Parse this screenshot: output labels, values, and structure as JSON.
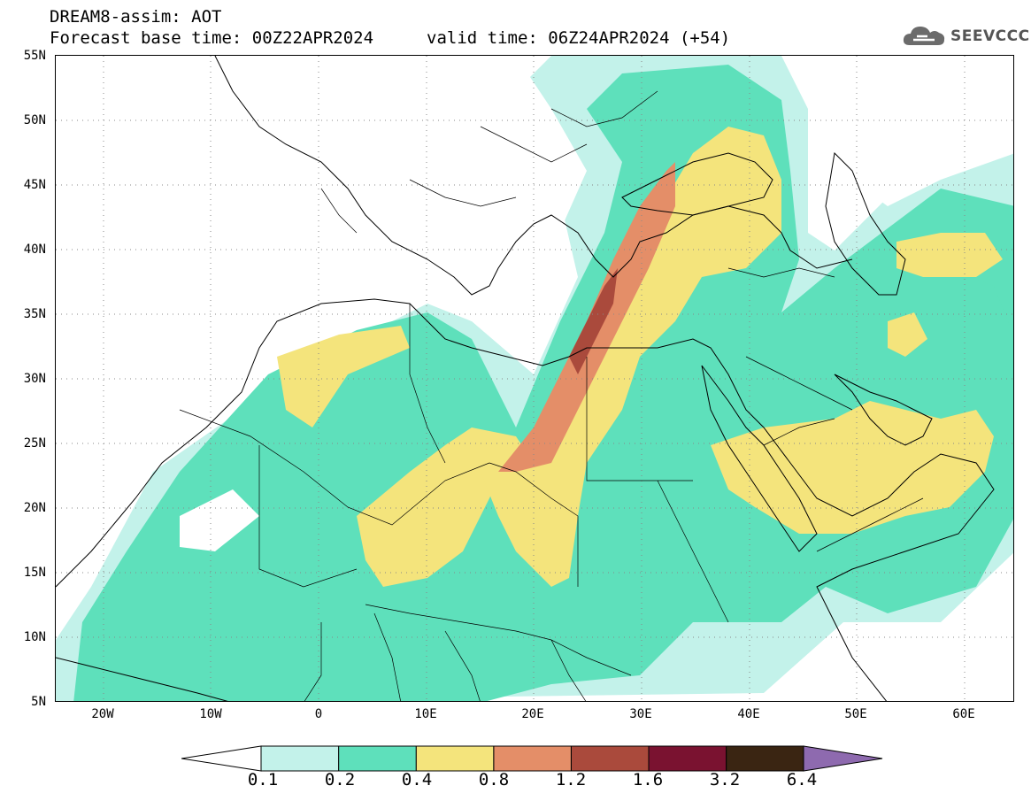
{
  "header": {
    "title": "DREAM8-assim: AOT",
    "base_time": "Forecast base time: 00Z22APR2024",
    "valid_time": "valid time: 06Z24APR2024 (+54)"
  },
  "logo": {
    "text": "SEEVCCC",
    "icon": "cloud-icon"
  },
  "axes": {
    "lat_labels": [
      "55N",
      "50N",
      "45N",
      "40N",
      "35N",
      "30N",
      "25N",
      "20N",
      "15N",
      "10N",
      "5N"
    ],
    "lon_labels": [
      "20W",
      "10W",
      "0",
      "10E",
      "20E",
      "30E",
      "40E",
      "50E",
      "60E"
    ]
  },
  "legend": {
    "labels": [
      "0.1",
      "0.2",
      "0.4",
      "0.8",
      "1.2",
      "1.6",
      "3.2",
      "6.4"
    ],
    "colors": [
      "#c3f2ea",
      "#5ee0bb",
      "#f4e47c",
      "#e48e68",
      "#aa4a3c",
      "#7a1230",
      "#3a2512",
      "#8e6aaf"
    ]
  },
  "map": {
    "colors": {
      "very_low": "#c3f2ea",
      "low": "#5ee0bb",
      "moderate": "#f4e47c",
      "high": "#e48e68",
      "very_high": "#aa4a3c"
    }
  }
}
